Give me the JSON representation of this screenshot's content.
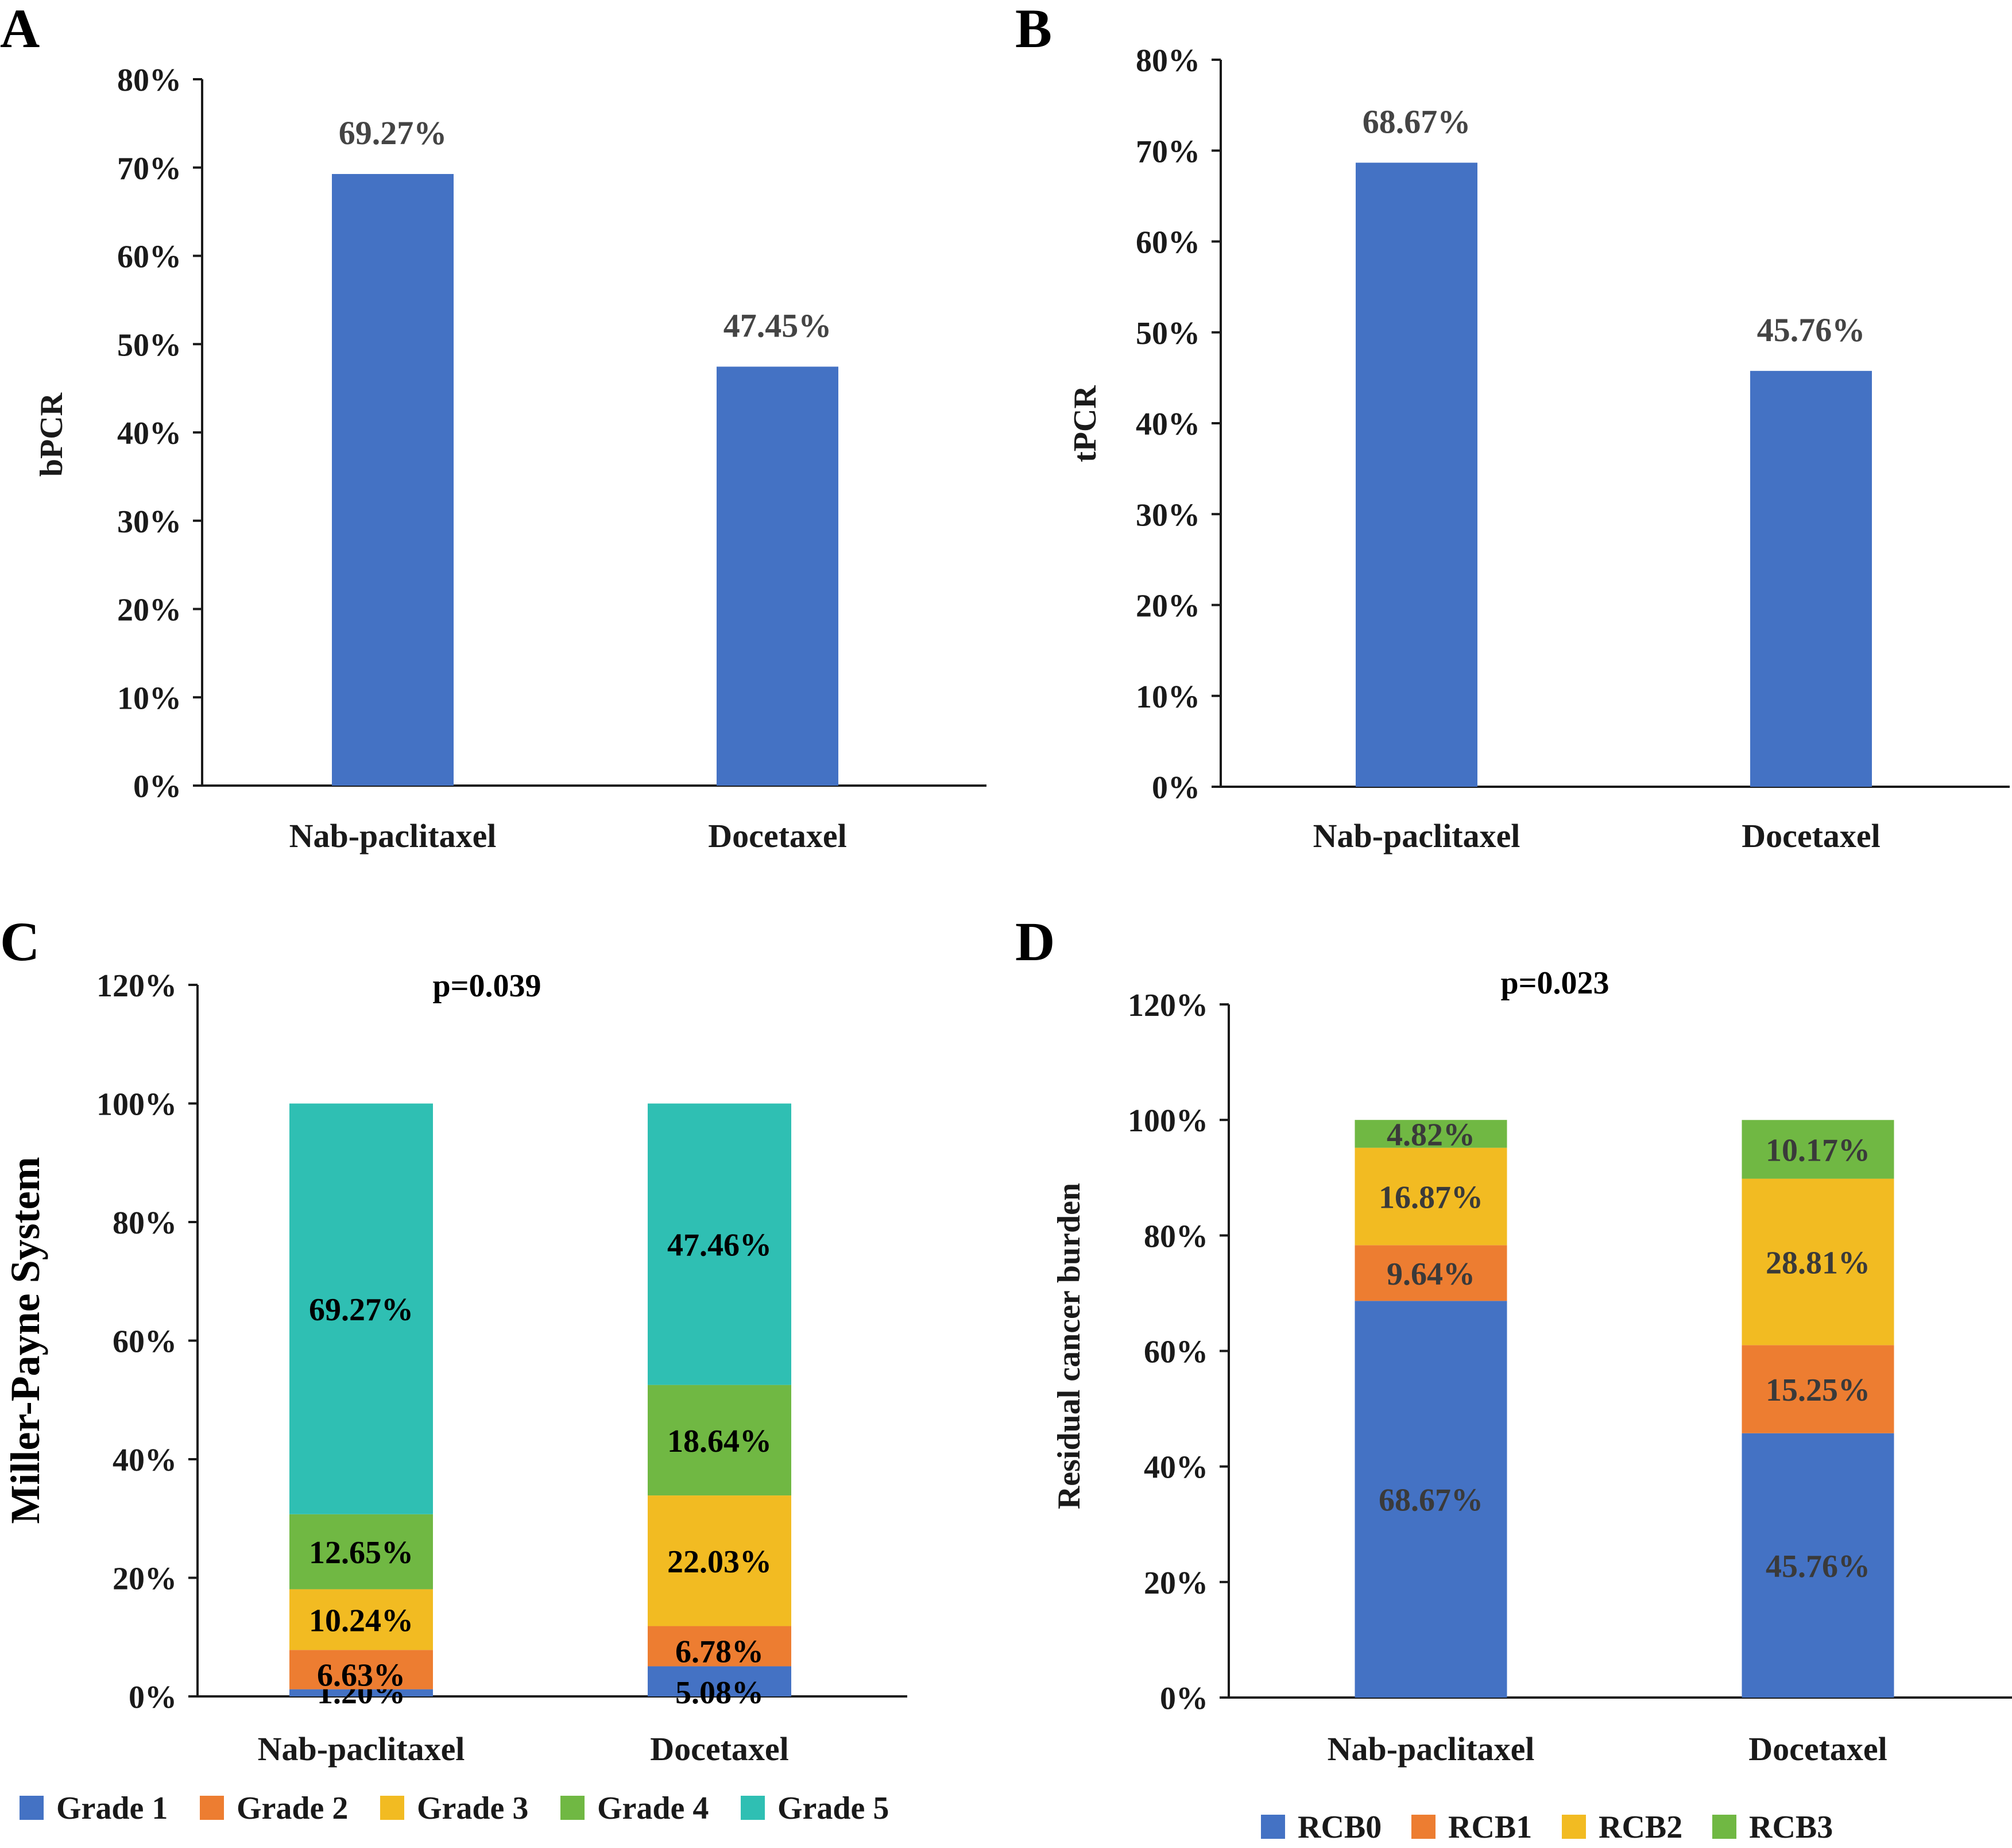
{
  "chart_data": [
    {
      "panel": "A",
      "type": "bar",
      "title": "",
      "categories": [
        "Nab-paclitaxel",
        "Docetaxel"
      ],
      "values": [
        69.27,
        47.45
      ],
      "value_labels": [
        "69.27%",
        "47.45%"
      ],
      "xlabel": "",
      "ylabel": "bPCR",
      "ylim": [
        0,
        80
      ],
      "yticks": [
        "0%",
        "10%",
        "20%",
        "30%",
        "40%",
        "50%",
        "60%",
        "70%",
        "80%"
      ],
      "color": "#4472C4"
    },
    {
      "panel": "B",
      "type": "bar",
      "title": "",
      "categories": [
        "Nab-paclitaxel",
        "Docetaxel"
      ],
      "values": [
        68.67,
        45.76
      ],
      "value_labels": [
        "68.67%",
        "45.76%"
      ],
      "xlabel": "",
      "ylabel": "tPCR",
      "ylim": [
        0,
        80
      ],
      "yticks": [
        "0%",
        "10%",
        "20%",
        "30%",
        "40%",
        "50%",
        "60%",
        "70%",
        "80%"
      ],
      "color": "#4472C4"
    },
    {
      "panel": "C",
      "type": "bar",
      "stacked": true,
      "title": "",
      "annotation": "p=0.039",
      "categories": [
        "Nab-paclitaxel",
        "Docetaxel"
      ],
      "xlabel": "",
      "ylabel": "Miller-Payne System",
      "ylim": [
        0,
        120
      ],
      "yticks": [
        "0%",
        "20%",
        "40%",
        "60%",
        "80%",
        "100%",
        "120%"
      ],
      "series": [
        {
          "name": "Grade 1",
          "color": "#4472C4",
          "values": [
            1.2,
            5.08
          ],
          "labels": [
            "1.20%",
            "5.08%"
          ]
        },
        {
          "name": "Grade 2",
          "color": "#ED7D31",
          "values": [
            6.63,
            6.78
          ],
          "labels": [
            "6.63%",
            "6.78%"
          ]
        },
        {
          "name": "Grade 3",
          "color": "#F2BB22",
          "values": [
            10.24,
            22.03
          ],
          "labels": [
            "10.24%",
            "22.03%"
          ]
        },
        {
          "name": "Grade 4",
          "color": "#70B843",
          "values": [
            12.65,
            18.64
          ],
          "labels": [
            "12.65%",
            "18.64%"
          ]
        },
        {
          "name": "Grade 5",
          "color": "#2FBFB3",
          "values": [
            69.27,
            47.46
          ],
          "labels": [
            "69.27%",
            "47.46%"
          ]
        }
      ],
      "legend": "bottom"
    },
    {
      "panel": "D",
      "type": "bar",
      "stacked": true,
      "title": "",
      "annotation": "p=0.023",
      "categories": [
        "Nab-paclitaxel",
        "Docetaxel"
      ],
      "xlabel": "",
      "ylabel": "Residual cancer burden",
      "ylim": [
        0,
        120
      ],
      "yticks": [
        "0%",
        "20%",
        "40%",
        "60%",
        "80%",
        "100%",
        "120%"
      ],
      "series": [
        {
          "name": "RCB0",
          "color": "#4472C4",
          "values": [
            68.67,
            45.76
          ],
          "labels": [
            "68.67%",
            "45.76%"
          ]
        },
        {
          "name": "RCB1",
          "color": "#ED7D31",
          "values": [
            9.64,
            15.25
          ],
          "labels": [
            "9.64%",
            "15.25%"
          ]
        },
        {
          "name": "RCB2",
          "color": "#F2BB22",
          "values": [
            16.87,
            28.81
          ],
          "labels": [
            "16.87%",
            "28.81%"
          ]
        },
        {
          "name": "RCB3",
          "color": "#70B843",
          "values": [
            4.82,
            10.17
          ],
          "labels": [
            "4.82%",
            "10.17%"
          ]
        }
      ],
      "legend": "bottom"
    }
  ]
}
